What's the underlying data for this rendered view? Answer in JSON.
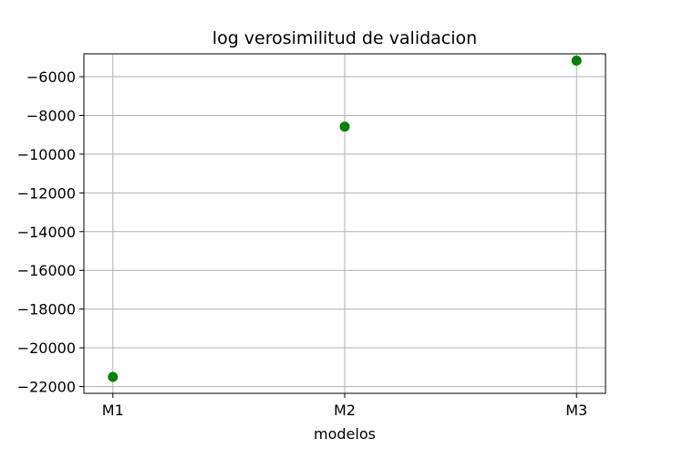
{
  "chart_data": {
    "type": "scatter",
    "title": "log verosimilitud de validacion",
    "xlabel": "modelos",
    "ylabel": "",
    "categories": [
      "M1",
      "M2",
      "M3"
    ],
    "series": [
      {
        "values": [
          -21500,
          -8580,
          -5170
        ],
        "color": "#008000"
      }
    ],
    "yticks": [
      -22000,
      -20000,
      -18000,
      -16000,
      -14000,
      -12000,
      -10000,
      -8000,
      -6000
    ],
    "ytick_labels": [
      "−22000",
      "−20000",
      "−18000",
      "−16000",
      "−14000",
      "−12000",
      "−10000",
      "−8000",
      "−6000"
    ],
    "ylim": [
      -22350,
      -4820
    ],
    "grid": true,
    "legend": "none"
  }
}
